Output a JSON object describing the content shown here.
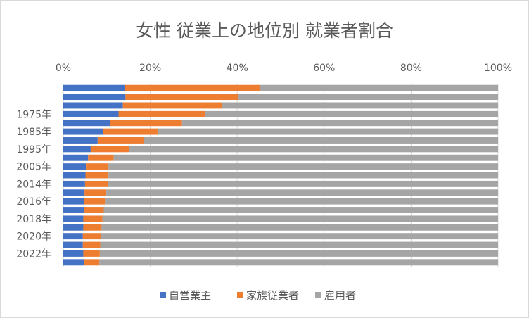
{
  "chart_data": {
    "type": "bar",
    "orientation": "horizontal",
    "stacked": "percent",
    "title": "女性 従業上の地位別 就業者割合",
    "xlim": [
      0,
      100
    ],
    "x_ticks": [
      "0%",
      "20%",
      "40%",
      "60%",
      "80%",
      "100%"
    ],
    "grid": true,
    "legend_position": "bottom",
    "categories": [
      "",
      "",
      "",
      "1975年",
      "",
      "1985年",
      "",
      "1995年",
      "",
      "2005年",
      "",
      "2014年",
      "",
      "2016年",
      "",
      "2018年",
      "",
      "2020年",
      "",
      "2022年",
      ""
    ],
    "series": [
      {
        "name": "自営業主",
        "color": "#4472c4",
        "values": [
          14.2,
          14.3,
          13.7,
          12.7,
          10.8,
          9.1,
          7.9,
          6.3,
          5.7,
          5.2,
          5.1,
          5.0,
          4.9,
          4.8,
          4.7,
          4.6,
          4.6,
          4.5,
          4.5,
          4.6,
          4.7
        ]
      },
      {
        "name": "家族従業者",
        "color": "#ed7d31",
        "values": [
          31.0,
          25.9,
          22.8,
          19.9,
          16.5,
          12.6,
          10.7,
          8.9,
          5.9,
          5.2,
          5.3,
          5.3,
          5.0,
          4.8,
          4.6,
          4.4,
          4.2,
          4.1,
          4.0,
          3.8,
          3.6
        ]
      },
      {
        "name": "雇用者",
        "color": "#a5a5a5",
        "values": [
          54.8,
          59.8,
          63.5,
          67.4,
          72.7,
          78.3,
          81.4,
          84.8,
          88.4,
          89.6,
          89.6,
          89.7,
          90.1,
          90.4,
          90.7,
          91.0,
          91.2,
          91.4,
          91.5,
          91.6,
          91.7
        ]
      }
    ]
  }
}
